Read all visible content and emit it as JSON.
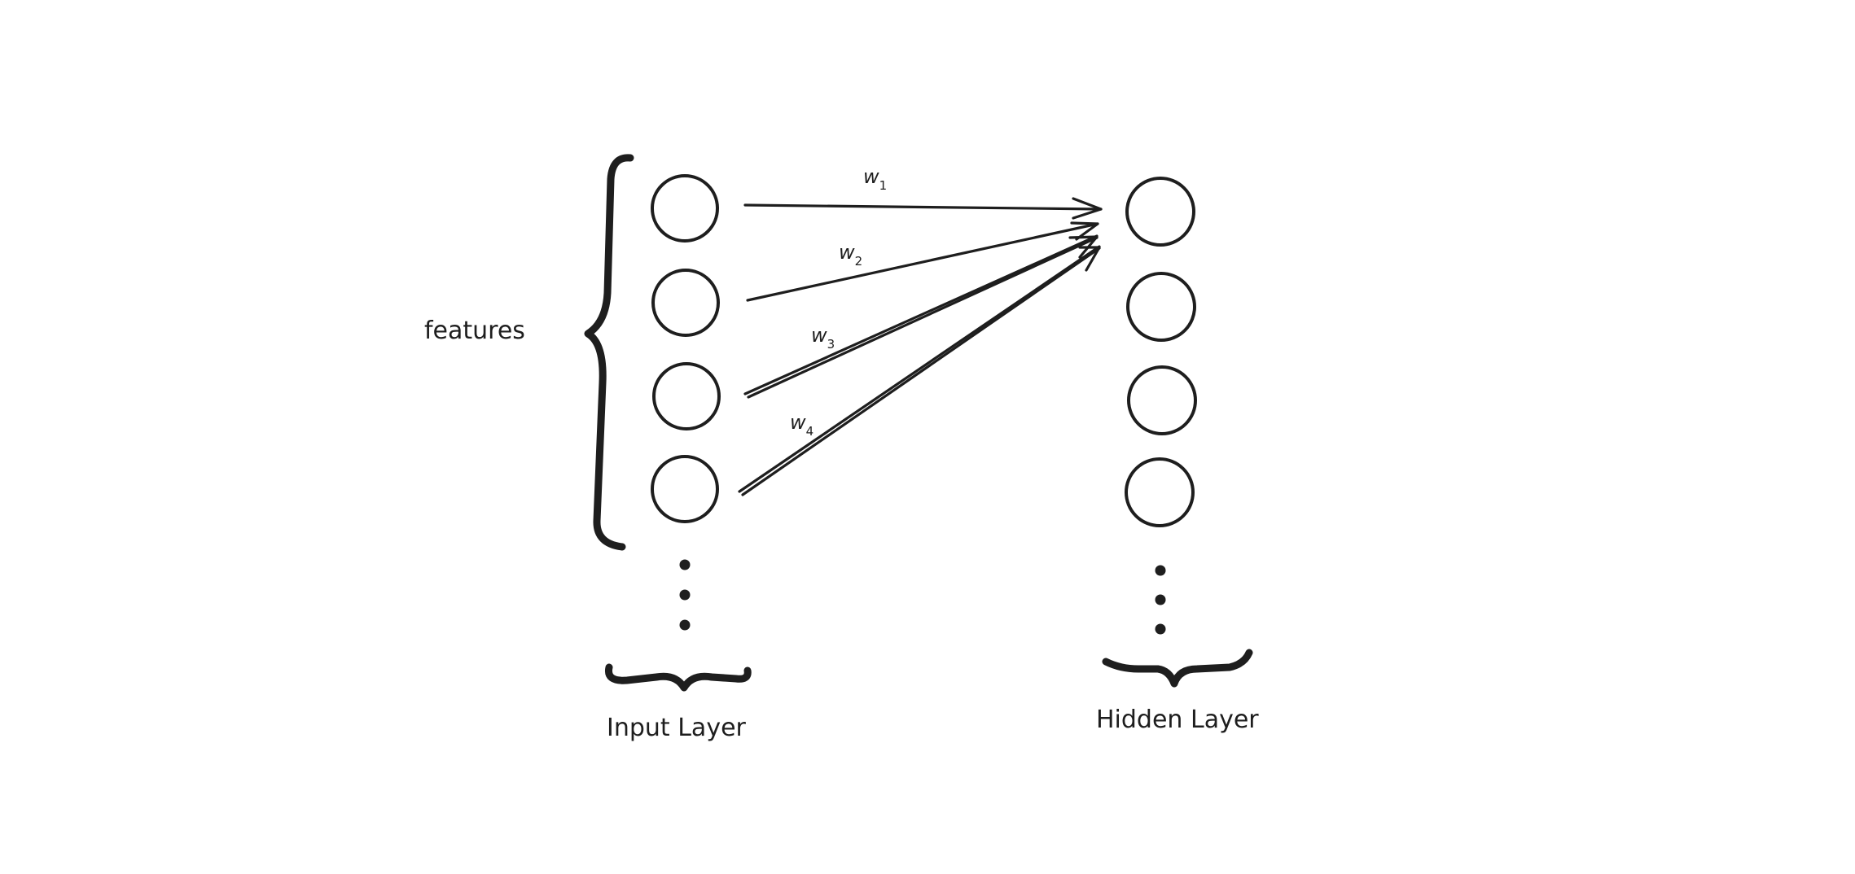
{
  "labels": {
    "features": "features",
    "input_layer": "Input Layer",
    "hidden_layer": "Hidden Layer"
  },
  "weights": [
    {
      "symbol": "w",
      "subscript": "1"
    },
    {
      "symbol": "w",
      "subscript": "2"
    },
    {
      "symbol": "w",
      "subscript": "3"
    },
    {
      "symbol": "w",
      "subscript": "4"
    }
  ],
  "colors": {
    "stroke": "#1e1e1e",
    "background": "#ffffff"
  }
}
